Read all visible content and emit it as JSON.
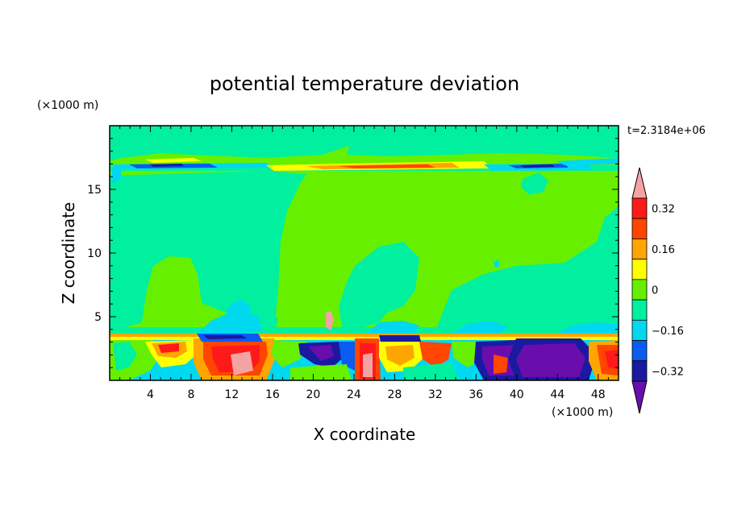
{
  "chart_data": {
    "type": "heatmap",
    "title": "potential temperature deviation",
    "xlabel": "X coordinate",
    "ylabel": "Z coordinate",
    "x_unit": "(×1000 m)",
    "y_unit": "(×1000 m)",
    "time_label": "t=2.3184e+06",
    "xlim": [
      0,
      50
    ],
    "ylim": [
      0,
      20
    ],
    "x_ticks": [
      4,
      8,
      12,
      16,
      20,
      24,
      28,
      32,
      36,
      40,
      44,
      48
    ],
    "y_ticks": [
      5,
      10,
      15
    ],
    "colorbar": {
      "levels": [
        -0.4,
        -0.32,
        -0.24,
        -0.16,
        -0.08,
        0,
        0.08,
        0.16,
        0.24,
        0.32,
        0.4
      ],
      "labels": [
        "0.32",
        "0.16",
        "0",
        "−0.16",
        "−0.32"
      ],
      "colors": [
        "#6a0dad",
        "#1a1aa0",
        "#0a5cf0",
        "#00d8f0",
        "#00f0a0",
        "#66f000",
        "#ffff00",
        "#ffa500",
        "#ff4500",
        "#ff1a1a",
        "#f4a3a3"
      ]
    }
  }
}
